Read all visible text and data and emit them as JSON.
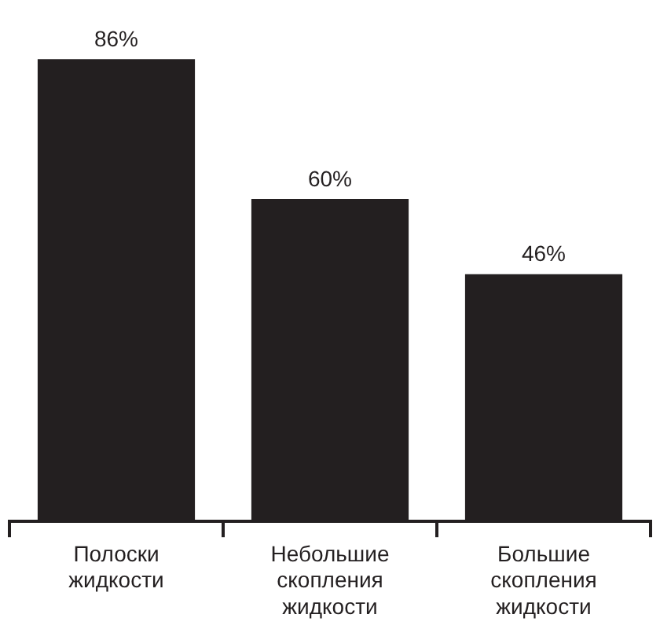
{
  "chart_data": {
    "type": "bar",
    "categories": [
      "Полоски жидкости",
      "Небольшие скопления жидкости",
      "Большие скопления жидкости"
    ],
    "values": [
      86,
      60,
      46
    ],
    "value_labels": [
      "86%",
      "60%",
      "46%"
    ],
    "color": "#231f20",
    "grid": false,
    "legend": false
  }
}
